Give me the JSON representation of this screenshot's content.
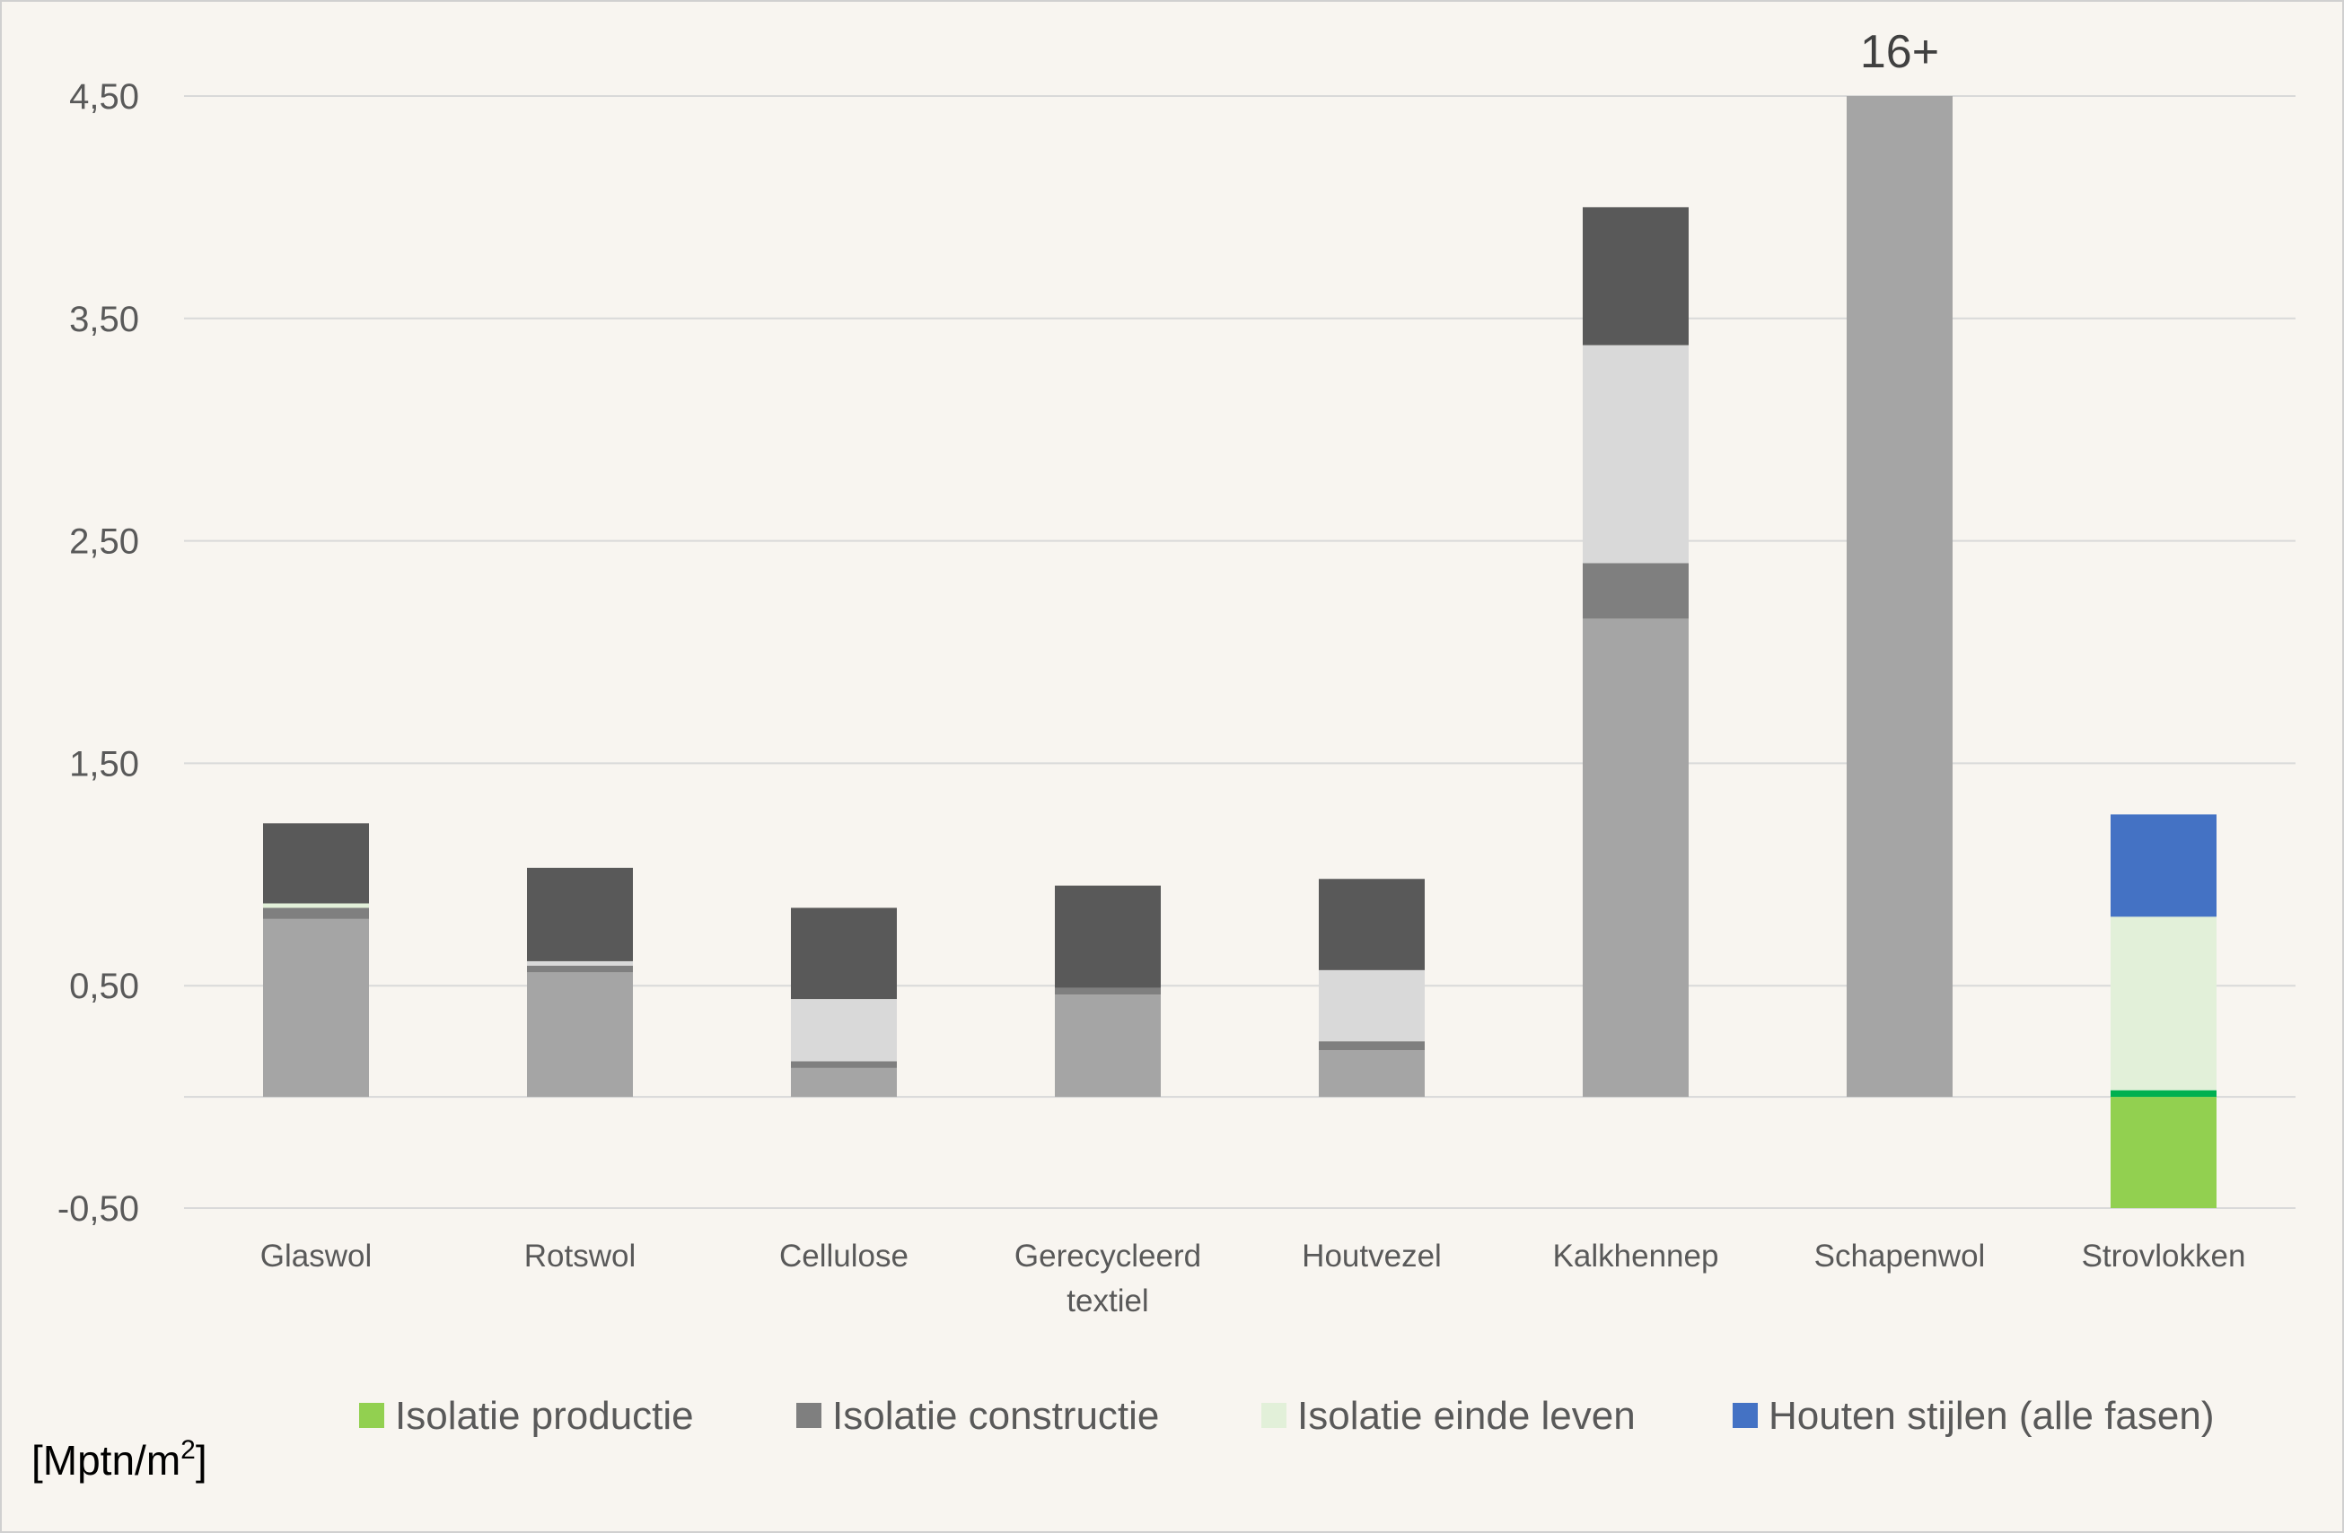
{
  "chart_data": {
    "type": "bar",
    "stacked": true,
    "title": "",
    "xlabel": "",
    "ylabel": "",
    "unit_label": "[Mptn/m",
    "unit_superscript": "2",
    "unit_close": "]",
    "ylim": [
      -0.5,
      4.5
    ],
    "yticks": [
      "4,50",
      "3,50",
      "2,50",
      "1,50",
      "0,50",
      "-0,50"
    ],
    "ytick_values": [
      4.5,
      3.5,
      2.5,
      1.5,
      0.5,
      -0.5
    ],
    "grid": true,
    "legend_position": "bottom",
    "categories": [
      [
        "Glaswol"
      ],
      [
        "Rotswol"
      ],
      [
        "Cellulose"
      ],
      [
        "Gerecycleerd",
        "textiel"
      ],
      [
        "Houtvezel"
      ],
      [
        "Kalkhennep"
      ],
      [
        "Schapenwol"
      ],
      [
        "Strovlokken"
      ]
    ],
    "segments": [
      [
        {
          "from": 0,
          "to": 0.8,
          "color": "#a5a5a5"
        },
        {
          "from": 0.8,
          "to": 0.85,
          "color": "#7f7f7f"
        },
        {
          "from": 0.85,
          "to": 0.87,
          "color": "#e2f0d9"
        },
        {
          "from": 0.87,
          "to": 1.23,
          "color": "#595959"
        }
      ],
      [
        {
          "from": 0,
          "to": 0.56,
          "color": "#a5a5a5"
        },
        {
          "from": 0.56,
          "to": 0.59,
          "color": "#7f7f7f"
        },
        {
          "from": 0.59,
          "to": 0.61,
          "color": "#d9d9d9"
        },
        {
          "from": 0.61,
          "to": 1.03,
          "color": "#595959"
        }
      ],
      [
        {
          "from": 0,
          "to": 0.13,
          "color": "#a5a5a5"
        },
        {
          "from": 0.13,
          "to": 0.16,
          "color": "#7f7f7f"
        },
        {
          "from": 0.16,
          "to": 0.44,
          "color": "#d9d9d9"
        },
        {
          "from": 0.44,
          "to": 0.85,
          "color": "#595959"
        }
      ],
      [
        {
          "from": 0,
          "to": 0.46,
          "color": "#a5a5a5"
        },
        {
          "from": 0.46,
          "to": 0.49,
          "color": "#7f7f7f"
        },
        {
          "from": 0.49,
          "to": 0.95,
          "color": "#595959"
        }
      ],
      [
        {
          "from": 0,
          "to": 0.21,
          "color": "#a5a5a5"
        },
        {
          "from": 0.21,
          "to": 0.25,
          "color": "#7f7f7f"
        },
        {
          "from": 0.25,
          "to": 0.57,
          "color": "#d9d9d9"
        },
        {
          "from": 0.57,
          "to": 0.98,
          "color": "#595959"
        }
      ],
      [
        {
          "from": 0,
          "to": 2.15,
          "color": "#a5a5a5"
        },
        {
          "from": 2.15,
          "to": 2.4,
          "color": "#7f7f7f"
        },
        {
          "from": 2.4,
          "to": 3.38,
          "color": "#d9d9d9"
        },
        {
          "from": 3.38,
          "to": 4.0,
          "color": "#595959"
        }
      ],
      [
        {
          "from": 0,
          "to": 4.5,
          "color": "#a5a5a5"
        }
      ],
      [
        {
          "from": -0.5,
          "to": 0,
          "color": "#92d050"
        },
        {
          "from": 0,
          "to": 0.03,
          "color": "#00b050"
        },
        {
          "from": 0.03,
          "to": 0.81,
          "color": "#e2f0d9"
        },
        {
          "from": 0.81,
          "to": 1.27,
          "color": "#4472c4"
        }
      ]
    ],
    "annotations": [
      {
        "category_index": 6,
        "text": "16+"
      }
    ],
    "legend": [
      {
        "label": "Isolatie productie",
        "color": "#92d050"
      },
      {
        "label": "Isolatie constructie",
        "color": "#7f7f7f"
      },
      {
        "label": "Isolatie einde leven",
        "color": "#e2f0d9"
      },
      {
        "label": "Houten stijlen (alle fasen)",
        "color": "#4472c4"
      }
    ]
  }
}
